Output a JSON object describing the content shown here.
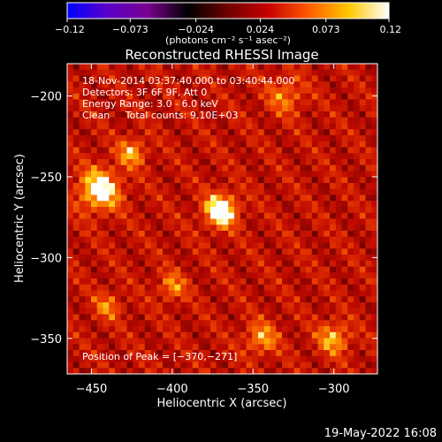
{
  "chart_data": {
    "type": "heatmap",
    "title": "Reconstructed RHESSI Image",
    "xlabel": "Heliocentric X (arcsec)",
    "ylabel": "Heliocentric Y (arcsec)",
    "xlim": [
      -465,
      -273
    ],
    "ylim": [
      -372,
      -180
    ],
    "x_ticks": [
      -450,
      -400,
      -350,
      -300
    ],
    "x_tick_labels": [
      "−450",
      "−400",
      "−350",
      "−300"
    ],
    "y_ticks": [
      -200,
      -250,
      -300,
      -350
    ],
    "y_tick_labels": [
      "−200",
      "−250",
      "−300",
      "−350"
    ],
    "colorbar": {
      "range": [
        -0.12,
        0.12
      ],
      "ticks": [
        -0.12,
        -0.073,
        -0.024,
        0.024,
        0.073,
        0.12
      ],
      "tick_labels": [
        "−0.12",
        "−0.073",
        "−0.024",
        "0.024",
        "0.073",
        "0.12"
      ],
      "unit_label": "(photons cm⁻² s⁻¹ asec⁻²)",
      "colors": [
        "#0000ff",
        "#5a00c8",
        "#7a0090",
        "#000000",
        "#700000",
        "#c80000",
        "#ff5a00",
        "#ffc800",
        "#ffffff"
      ]
    },
    "annotations": [
      "18-Nov-2014 03:37:40.000 to 03:40:44.000",
      "Detectors: 3F 6F 9F, Att 0",
      "Energy Range: 3.0 - 6.0 keV",
      "Clean     Total counts: 9.10E+03"
    ],
    "peak_label": "Position of Peak = [−370,−271]",
    "sources": [
      {
        "x": -370,
        "y": -271,
        "intensity": 1.0,
        "sigma": 7
      },
      {
        "x": -445,
        "y": -258,
        "intensity": 0.85,
        "sigma": 9
      },
      {
        "x": -425,
        "y": -235,
        "intensity": 0.55,
        "sigma": 6
      },
      {
        "x": -300,
        "y": -350,
        "intensity": 0.55,
        "sigma": 7
      },
      {
        "x": -345,
        "y": -350,
        "intensity": 0.5,
        "sigma": 7
      },
      {
        "x": -400,
        "y": -318,
        "intensity": 0.45,
        "sigma": 6
      },
      {
        "x": -330,
        "y": -200,
        "intensity": 0.4,
        "sigma": 8
      },
      {
        "x": -440,
        "y": -330,
        "intensity": 0.4,
        "sigma": 6
      }
    ]
  },
  "footer": {
    "date_stamp": "19-May-2022 16:08"
  }
}
